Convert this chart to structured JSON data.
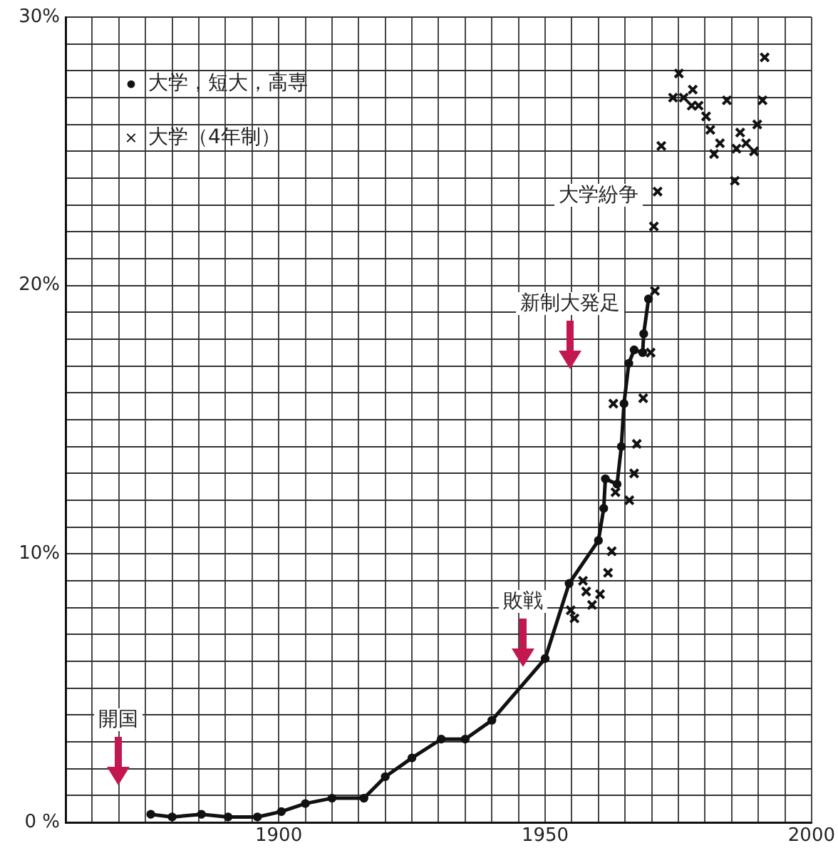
{
  "chart_data": {
    "type": "line",
    "xlim": [
      1860,
      2000
    ],
    "ylim": [
      0,
      30
    ],
    "xticks": [
      {
        "value": 1860,
        "label": null
      },
      {
        "value": 1865,
        "label": null
      },
      {
        "value": 1870,
        "label": null
      },
      {
        "value": 1875,
        "label": null
      },
      {
        "value": 1880,
        "label": null
      },
      {
        "value": 1885,
        "label": null
      },
      {
        "value": 1890,
        "label": null
      },
      {
        "value": 1895,
        "label": null
      },
      1900,
      {
        "value": 1905,
        "label": null
      },
      {
        "value": 1910,
        "label": null
      },
      {
        "value": 1915,
        "label": null
      },
      {
        "value": 1920,
        "label": null
      },
      {
        "value": 1925,
        "label": null
      },
      {
        "value": 1930,
        "label": null
      },
      {
        "value": 1935,
        "label": null
      },
      {
        "value": 1940,
        "label": null
      },
      {
        "value": 1945,
        "label": null
      },
      1950,
      {
        "value": 1955,
        "label": null
      },
      {
        "value": 1960,
        "label": null
      },
      {
        "value": 1965,
        "label": null
      },
      {
        "value": 1970,
        "label": null
      },
      {
        "value": 1975,
        "label": null
      },
      {
        "value": 1980,
        "label": null
      },
      {
        "value": 1985,
        "label": null
      },
      {
        "value": 1990,
        "label": null
      },
      {
        "value": 1995,
        "label": null
      },
      2000
    ],
    "yticks": [
      {
        "value": 0,
        "label": "0 %"
      },
      {
        "value": 1,
        "label": null
      },
      {
        "value": 2,
        "label": null
      },
      {
        "value": 3,
        "label": null
      },
      {
        "value": 4,
        "label": null
      },
      {
        "value": 5,
        "label": null
      },
      {
        "value": 6,
        "label": null
      },
      {
        "value": 7,
        "label": null
      },
      {
        "value": 8,
        "label": null
      },
      {
        "value": 9,
        "label": null
      },
      {
        "value": 10,
        "label": "10%"
      },
      {
        "value": 11,
        "label": null
      },
      {
        "value": 12,
        "label": null
      },
      {
        "value": 13,
        "label": null
      },
      {
        "value": 14,
        "label": null
      },
      {
        "value": 15,
        "label": null
      },
      {
        "value": 16,
        "label": null
      },
      {
        "value": 17,
        "label": null
      },
      {
        "value": 18,
        "label": null
      },
      {
        "value": 19,
        "label": null
      },
      {
        "value": 20,
        "label": "20%"
      },
      {
        "value": 21,
        "label": null
      },
      {
        "value": 22,
        "label": null
      },
      {
        "value": 23,
        "label": null
      },
      {
        "value": 24,
        "label": null
      },
      {
        "value": 25,
        "label": null
      },
      {
        "value": 26,
        "label": null
      },
      {
        "value": 27,
        "label": null
      },
      {
        "value": 28,
        "label": null
      },
      {
        "value": 29,
        "label": null
      },
      {
        "value": 30,
        "label": "30%"
      }
    ],
    "grid": true,
    "legend": "top left",
    "series": [
      {
        "name": "大学，短大，高専",
        "marker": "circle",
        "line_style": "solid",
        "color": "#111111",
        "x": [
          1876,
          1880,
          1885.5,
          1890.5,
          1896,
          1900.5,
          1905,
          1910,
          1916,
          1920,
          1925,
          1930.5,
          1935,
          1940,
          1950,
          1954.5,
          1960,
          1961,
          1961.3,
          1963.5,
          1964.3,
          1964.8,
          1965.7,
          1966.7,
          1968.3,
          1968.5,
          1969.4
        ],
        "values": [
          0.3,
          0.2,
          0.3,
          0.2,
          0.2,
          0.4,
          0.7,
          0.9,
          0.9,
          1.7,
          2.4,
          3.1,
          3.1,
          3.8,
          6.1,
          8.9,
          10.5,
          11.7,
          12.8,
          12.6,
          14.0,
          15.6,
          17.1,
          17.6,
          17.5,
          18.2,
          19.5
        ]
      },
      {
        "name": "大学（4年制）",
        "type": "scatter",
        "marker": "cross",
        "color": "#111111",
        "x": [
          1954.8,
          1955.5,
          1957.1,
          1957.7,
          1958.8,
          1960.3,
          1961.8,
          1962.5,
          1962.8,
          1963.2,
          1965.8,
          1966.7,
          1967.2,
          1968.4,
          1969.8,
          1970.6,
          1970.4,
          1971.1,
          1971.8,
          1974.0,
          1975.1,
          1976.0,
          1977.7,
          1977.5,
          1978.8,
          1980.2,
          1981.0,
          1981.7,
          1982.8,
          1984.1,
          1985.6,
          1985.9,
          1986.6,
          1987.7,
          1989.2,
          1989.8,
          1990.8,
          1991.2
        ],
        "values": [
          7.9,
          7.6,
          9.0,
          8.6,
          8.1,
          8.5,
          9.3,
          10.1,
          15.6,
          12.3,
          12.0,
          13.0,
          14.1,
          15.8,
          17.5,
          19.8,
          22.2,
          23.5,
          25.2,
          27.0,
          27.9,
          27.0,
          27.3,
          26.7,
          26.7,
          26.3,
          25.8,
          24.9,
          25.3,
          26.9,
          23.9,
          25.1,
          25.7,
          25.3,
          25.0,
          26.0,
          26.9,
          28.5
        ]
      }
    ],
    "annotations": [
      "開国",
      "敗戦",
      "新制大発足",
      "大学紛争"
    ]
  }
}
